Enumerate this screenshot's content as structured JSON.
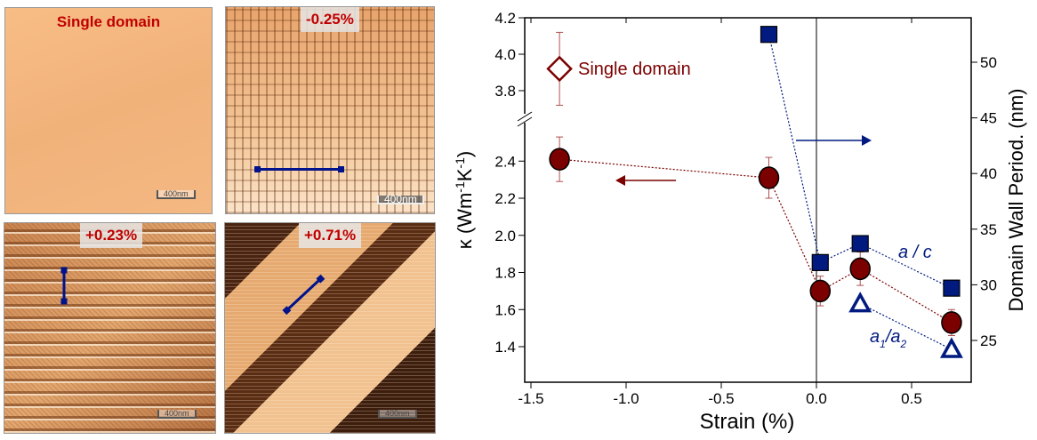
{
  "panels": [
    {
      "label": "Single domain",
      "scale": "400nm"
    },
    {
      "label": "-0.25%",
      "scale": "400nm"
    },
    {
      "label": "+0.23%",
      "scale": "400nm"
    },
    {
      "label": "+0.71%",
      "scale": "400nm"
    }
  ],
  "chart_data": {
    "type": "scatter",
    "xlabel": "Strain (%)",
    "ylabel_left": {
      "base": "κ (Wm",
      "sup1": "-1",
      "mid": "K",
      "sup2": "-1",
      "end": ")"
    },
    "ylabel_right": "Domain Wall Period. (nm)",
    "xlim": [
      -1.5,
      0.8
    ],
    "xticks": [
      "-1.5",
      "-1.0",
      "-0.5",
      "0.0",
      "0.5"
    ],
    "ylim_left_lower": [
      1.3,
      2.55
    ],
    "ylim_left_upper": [
      3.65,
      4.2
    ],
    "yticks_left": [
      "1.4",
      "1.6",
      "1.8",
      "2.0",
      "2.2",
      "2.4",
      "3.8",
      "4.0",
      "4.2"
    ],
    "ylim_right": [
      23,
      54
    ],
    "yticks_right": [
      "25",
      "30",
      "35",
      "40",
      "45",
      "50"
    ],
    "axis_break": true,
    "colors": {
      "kappa": "#7b0000",
      "period": "#001a80"
    },
    "series": [
      {
        "name": "κ",
        "axis": "left",
        "marker": "circle",
        "x": [
          -1.35,
          -0.25,
          0.02,
          0.23,
          0.71
        ],
        "y": [
          2.41,
          2.31,
          1.7,
          1.82,
          1.53
        ],
        "err": [
          0.12,
          0.11,
          0.08,
          0.09,
          0.07
        ]
      },
      {
        "name": "Single domain",
        "axis": "left",
        "marker": "diamond-open",
        "x": [
          -1.35
        ],
        "y": [
          3.92
        ],
        "err": [
          0.2
        ]
      },
      {
        "name": "a/c",
        "axis": "right",
        "marker": "square",
        "x": [
          -0.25,
          0.02,
          0.23,
          0.71
        ],
        "y": [
          52.5,
          32.0,
          33.7,
          29.7
        ]
      },
      {
        "name": "a1/a2",
        "axis": "right",
        "marker": "triangle-open",
        "x": [
          0.23,
          0.71
        ],
        "y": [
          28.3,
          24.2
        ]
      }
    ],
    "annotations": {
      "single_domain": "Single domain",
      "ac": "a / c",
      "a1a2": {
        "a": "a",
        "s1": "1",
        "slash": "/",
        "a2": "a",
        "s2": "2"
      }
    }
  }
}
